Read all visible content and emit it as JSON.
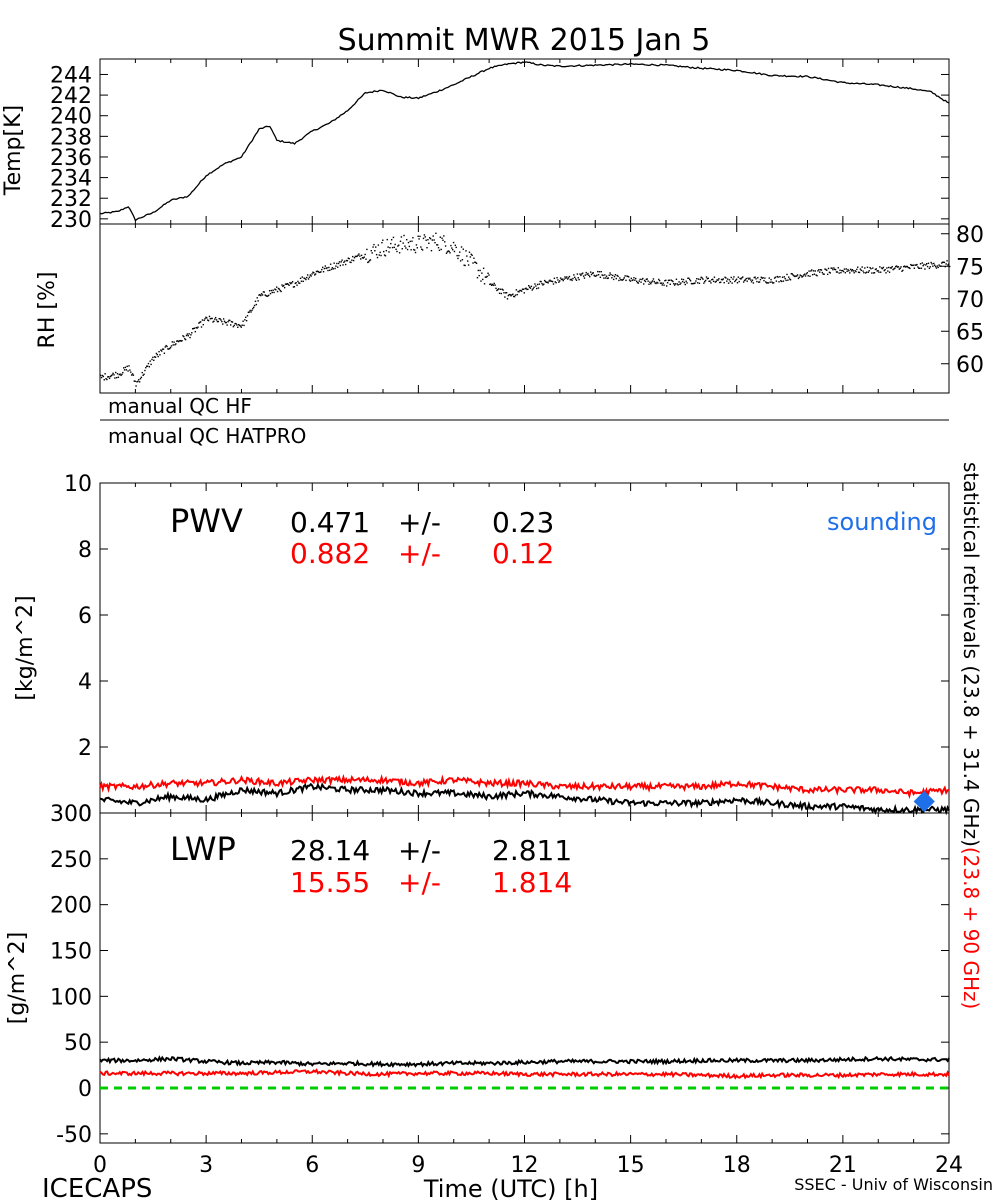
{
  "title": "Summit MWR 2015 Jan  5",
  "footer": {
    "left": "ICECAPS",
    "center": "Time (UTC) [h]",
    "right": "SSEC - Univ of Wisconsin"
  },
  "qc": {
    "hf": "manual QC HF",
    "hatpro": "manual QC HATPRO"
  },
  "right_labels": {
    "black": "statistical retrievals (23.8 + 31.4 GHz)",
    "red": "(23.8 + 90 GHz)"
  },
  "colors": {
    "black": "#000000",
    "red": "#ff0000",
    "green": "#00cc00",
    "blue": "#1e6fe8"
  },
  "chart_data": [
    {
      "type": "line",
      "ylabel": "Temp[K]",
      "ylim": [
        229.5,
        245.5
      ],
      "yticks": [
        230,
        232,
        234,
        236,
        238,
        240,
        242,
        244
      ],
      "xlim": [
        0,
        24
      ],
      "series": [
        {
          "color": "black",
          "x": [
            0,
            0.5,
            0.8,
            1.0,
            1.5,
            2.0,
            2.5,
            3.0,
            3.5,
            4.0,
            4.5,
            4.8,
            5.0,
            5.5,
            6.0,
            6.5,
            7.0,
            7.5,
            8.0,
            8.5,
            9.0,
            9.5,
            10.0,
            10.5,
            11.0,
            11.5,
            12.0,
            12.5,
            13.0,
            14.0,
            15.0,
            16.0,
            17.0,
            18.0,
            19.0,
            20.0,
            21.0,
            22.0,
            23.0,
            23.5,
            24.0
          ],
          "values": [
            230.5,
            230.7,
            231.2,
            229.9,
            230.6,
            231.8,
            232.2,
            234.2,
            235.3,
            236.0,
            238.7,
            239.0,
            237.6,
            237.3,
            238.5,
            239.3,
            240.5,
            242.2,
            242.5,
            241.8,
            241.7,
            242.3,
            243.0,
            243.8,
            244.6,
            245.0,
            245.2,
            244.9,
            244.8,
            244.9,
            245.0,
            244.9,
            244.6,
            244.4,
            243.9,
            243.8,
            243.2,
            243.0,
            242.6,
            242.3,
            241.2
          ]
        }
      ]
    },
    {
      "type": "scatter",
      "ylabel": "RH [%]",
      "ylim": [
        55.5,
        81.5
      ],
      "yticks": [
        60,
        65,
        70,
        75,
        80
      ],
      "xlim": [
        0,
        24
      ],
      "series": [
        {
          "color": "black",
          "x": [
            0,
            0.5,
            0.8,
            1.0,
            1.5,
            2.0,
            2.5,
            3.0,
            3.5,
            4.0,
            4.5,
            5.0,
            5.5,
            6.0,
            6.5,
            7.0,
            7.5,
            8.0,
            8.5,
            9.0,
            9.5,
            10.0,
            10.5,
            11.0,
            11.5,
            12.0,
            12.5,
            13.0,
            13.5,
            14.0,
            15.0,
            16.0,
            17.0,
            18.0,
            19.0,
            20.0,
            21.0,
            22.0,
            23.0,
            24.0
          ],
          "values": [
            58.0,
            58.5,
            59.5,
            57.0,
            61.0,
            63.0,
            64.5,
            67.0,
            66.5,
            66.0,
            70.5,
            71.5,
            72.5,
            74.0,
            75.0,
            76.0,
            77.0,
            78.0,
            78.5,
            78.5,
            79.0,
            78.0,
            75.5,
            72.5,
            70.5,
            71.5,
            72.5,
            73.0,
            73.5,
            74.0,
            73.0,
            72.5,
            73.0,
            73.0,
            73.0,
            74.0,
            74.5,
            74.5,
            75.0,
            75.5
          ]
        }
      ]
    },
    {
      "type": "line",
      "ylabel": "[kg/m^2]",
      "ylim": [
        0,
        10
      ],
      "yticks": [
        0,
        2,
        4,
        6,
        8,
        10
      ],
      "xlim": [
        0,
        24
      ],
      "label": "PWV",
      "stats": [
        {
          "color": "black",
          "mean": "0.471",
          "pm": "+/-",
          "sd": "0.23"
        },
        {
          "color": "red",
          "mean": "0.882",
          "pm": "+/-",
          "sd": "0.12"
        }
      ],
      "annotation": "sounding",
      "series": [
        {
          "color": "black",
          "x": [
            0,
            1,
            2,
            3,
            4,
            5,
            6,
            7,
            8,
            9,
            10,
            11,
            12,
            13,
            14,
            15,
            16,
            17,
            18,
            19,
            20,
            21,
            22,
            23,
            24
          ],
          "values": [
            0.4,
            0.3,
            0.5,
            0.4,
            0.7,
            0.6,
            0.8,
            0.7,
            0.7,
            0.6,
            0.6,
            0.5,
            0.6,
            0.5,
            0.4,
            0.3,
            0.3,
            0.3,
            0.4,
            0.3,
            0.2,
            0.2,
            0.1,
            0.1,
            0.1
          ]
        },
        {
          "color": "red",
          "x": [
            0,
            1,
            2,
            3,
            4,
            5,
            6,
            7,
            8,
            9,
            10,
            11,
            12,
            13,
            14,
            15,
            16,
            17,
            18,
            19,
            20,
            21,
            22,
            23,
            24
          ],
          "values": [
            0.8,
            0.8,
            0.9,
            0.9,
            1.0,
            0.9,
            1.0,
            1.0,
            1.0,
            0.9,
            1.0,
            0.9,
            0.9,
            0.8,
            0.8,
            0.8,
            0.8,
            0.8,
            0.9,
            0.8,
            0.7,
            0.7,
            0.7,
            0.6,
            0.7
          ]
        },
        {
          "color": "blue",
          "marker": "diamond",
          "x": [
            23.3
          ],
          "values": [
            0.35
          ]
        }
      ]
    },
    {
      "type": "line",
      "ylabel": "[g/m^2]",
      "ylim": [
        -60,
        300
      ],
      "yticks": [
        -50,
        0,
        50,
        100,
        150,
        200,
        250,
        300
      ],
      "xlim": [
        0,
        24
      ],
      "xticks": [
        0,
        3,
        6,
        9,
        12,
        15,
        18,
        21,
        24
      ],
      "label": "LWP",
      "stats": [
        {
          "color": "black",
          "mean": "28.14",
          "pm": "+/-",
          "sd": "2.811"
        },
        {
          "color": "red",
          "mean": "15.55",
          "pm": "+/-",
          "sd": "1.814"
        }
      ],
      "series": [
        {
          "color": "black",
          "x": [
            0,
            1,
            2,
            3,
            4,
            5,
            6,
            7,
            8,
            9,
            10,
            11,
            12,
            13,
            14,
            15,
            16,
            17,
            18,
            19,
            20,
            21,
            22,
            23,
            24
          ],
          "values": [
            30,
            30,
            32,
            29,
            27,
            28,
            26,
            27,
            26,
            26,
            27,
            27,
            28,
            29,
            29,
            29,
            29,
            30,
            30,
            30,
            30,
            31,
            32,
            31,
            31
          ]
        },
        {
          "color": "red",
          "x": [
            0,
            1,
            2,
            3,
            4,
            5,
            6,
            7,
            8,
            9,
            10,
            11,
            12,
            13,
            14,
            15,
            16,
            17,
            18,
            19,
            20,
            21,
            22,
            23,
            24
          ],
          "values": [
            16,
            16,
            16,
            16,
            16,
            17,
            18,
            16,
            15,
            16,
            16,
            16,
            15,
            15,
            15,
            15,
            15,
            14,
            13,
            14,
            14,
            14,
            15,
            15,
            15
          ]
        },
        {
          "color": "green",
          "style": "dashed",
          "x": [
            0,
            24
          ],
          "values": [
            0,
            0
          ]
        }
      ]
    }
  ]
}
